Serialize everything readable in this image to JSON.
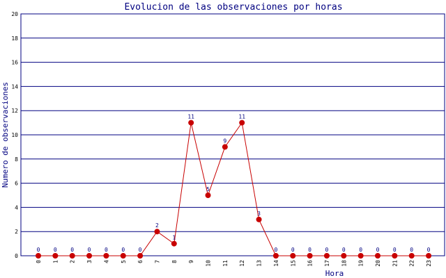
{
  "chart_data": {
    "type": "line",
    "title": "Evolucion de las observaciones por horas",
    "xlabel": "Hora",
    "ylabel": "Numero de observaciones",
    "categories": [
      "0",
      "1",
      "2",
      "3",
      "4",
      "5",
      "6",
      "7",
      "8",
      "9",
      "10",
      "11",
      "12",
      "13",
      "14",
      "15",
      "16",
      "17",
      "18",
      "19",
      "20",
      "21",
      "22",
      "23"
    ],
    "series": [
      {
        "values": [
          0,
          0,
          0,
          0,
          0,
          0,
          0,
          2,
          1,
          11,
          5,
          9,
          11,
          3,
          0,
          0,
          0,
          0,
          0,
          0,
          0,
          0,
          0,
          0
        ]
      }
    ],
    "ylim": [
      0,
      20
    ],
    "yticks": [
      "0",
      "2",
      "4",
      "6",
      "8",
      "10",
      "12",
      "14",
      "16",
      "18",
      "20"
    ],
    "grid": true,
    "colors": {
      "line": "#c80000",
      "marker": "#c80000",
      "grid": "#000080",
      "text": "#000080"
    }
  }
}
